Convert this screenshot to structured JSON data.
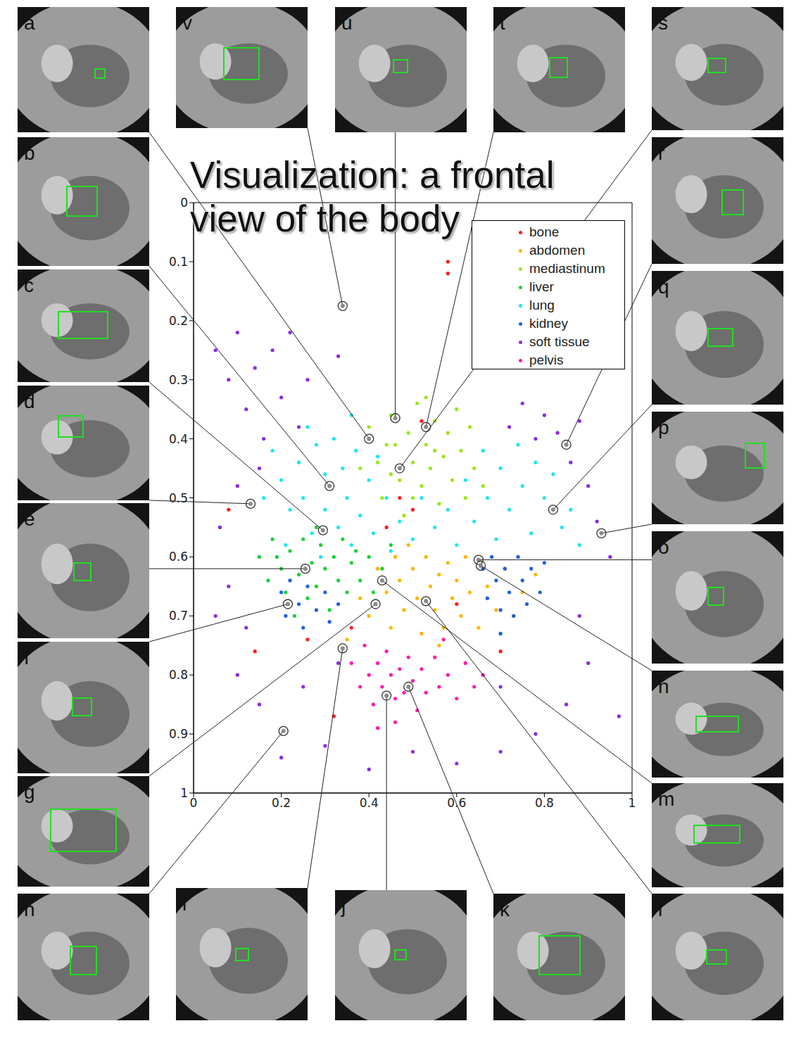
{
  "chart_data": {
    "type": "scatter",
    "title": "Visualization: a frontal view of the body",
    "xlim": [
      0,
      1
    ],
    "ylim": [
      1,
      0
    ],
    "xticks": [
      0,
      0.2,
      0.4,
      0.6,
      0.8,
      1
    ],
    "yticks": [
      0,
      0.1,
      0.2,
      0.3,
      0.4,
      0.5,
      0.6,
      0.7,
      0.8,
      0.9,
      1
    ],
    "legend": "upper right",
    "marker": "circle",
    "series": [
      {
        "name": "bone",
        "color": "#ff1a1a",
        "values": [
          [
            0.58,
            0.1
          ],
          [
            0.58,
            0.12
          ],
          [
            0.08,
            0.52
          ],
          [
            0.14,
            0.76
          ],
          [
            0.47,
            0.5
          ],
          [
            0.5,
            0.52
          ],
          [
            0.32,
            0.87
          ],
          [
            0.36,
            0.72
          ],
          [
            0.6,
            0.68
          ],
          [
            0.52,
            0.37
          ],
          [
            0.26,
            0.74
          ],
          [
            0.7,
            0.76
          ],
          [
            0.44,
            0.55
          ]
        ]
      },
      {
        "name": "abdomen",
        "color": "#ffb400",
        "values": [
          [
            0.38,
            0.67
          ],
          [
            0.4,
            0.7
          ],
          [
            0.42,
            0.62
          ],
          [
            0.44,
            0.66
          ],
          [
            0.45,
            0.72
          ],
          [
            0.46,
            0.6
          ],
          [
            0.47,
            0.64
          ],
          [
            0.48,
            0.69
          ],
          [
            0.5,
            0.62
          ],
          [
            0.51,
            0.67
          ],
          [
            0.52,
            0.73
          ],
          [
            0.53,
            0.6
          ],
          [
            0.54,
            0.65
          ],
          [
            0.55,
            0.69
          ],
          [
            0.56,
            0.63
          ],
          [
            0.57,
            0.72
          ],
          [
            0.58,
            0.61
          ],
          [
            0.59,
            0.67
          ],
          [
            0.6,
            0.64
          ],
          [
            0.61,
            0.7
          ],
          [
            0.62,
            0.6
          ],
          [
            0.63,
            0.66
          ],
          [
            0.65,
            0.72
          ],
          [
            0.67,
            0.65
          ],
          [
            0.69,
            0.69
          ],
          [
            0.71,
            0.62
          ],
          [
            0.73,
            0.7
          ],
          [
            0.75,
            0.66
          ],
          [
            0.78,
            0.63
          ],
          [
            0.49,
            0.58
          ],
          [
            0.56,
            0.75
          ],
          [
            0.35,
            0.74
          ]
        ]
      },
      {
        "name": "mediastinum",
        "color": "#9be619",
        "values": [
          [
            0.4,
            0.38
          ],
          [
            0.42,
            0.44
          ],
          [
            0.43,
            0.5
          ],
          [
            0.45,
            0.36
          ],
          [
            0.46,
            0.41
          ],
          [
            0.47,
            0.47
          ],
          [
            0.48,
            0.53
          ],
          [
            0.49,
            0.39
          ],
          [
            0.5,
            0.44
          ],
          [
            0.51,
            0.34
          ],
          [
            0.52,
            0.48
          ],
          [
            0.53,
            0.41
          ],
          [
            0.54,
            0.45
          ],
          [
            0.55,
            0.37
          ],
          [
            0.56,
            0.51
          ],
          [
            0.57,
            0.43
          ],
          [
            0.58,
            0.39
          ],
          [
            0.59,
            0.47
          ],
          [
            0.6,
            0.35
          ],
          [
            0.61,
            0.42
          ],
          [
            0.62,
            0.5
          ],
          [
            0.63,
            0.38
          ],
          [
            0.64,
            0.45
          ],
          [
            0.45,
            0.46
          ],
          [
            0.5,
            0.5
          ],
          [
            0.55,
            0.42
          ],
          [
            0.38,
            0.45
          ],
          [
            0.66,
            0.48
          ],
          [
            0.53,
            0.33
          ],
          [
            0.44,
            0.41
          ]
        ]
      },
      {
        "name": "liver",
        "color": "#1ad133",
        "values": [
          [
            0.15,
            0.6
          ],
          [
            0.17,
            0.64
          ],
          [
            0.18,
            0.57
          ],
          [
            0.2,
            0.62
          ],
          [
            0.21,
            0.66
          ],
          [
            0.22,
            0.59
          ],
          [
            0.24,
            0.63
          ],
          [
            0.25,
            0.57
          ],
          [
            0.26,
            0.67
          ],
          [
            0.27,
            0.61
          ],
          [
            0.28,
            0.65
          ],
          [
            0.29,
            0.58
          ],
          [
            0.3,
            0.62
          ],
          [
            0.31,
            0.69
          ],
          [
            0.32,
            0.6
          ],
          [
            0.33,
            0.64
          ],
          [
            0.34,
            0.57
          ],
          [
            0.35,
            0.66
          ],
          [
            0.36,
            0.61
          ],
          [
            0.37,
            0.59
          ],
          [
            0.38,
            0.64
          ],
          [
            0.4,
            0.6
          ],
          [
            0.41,
            0.66
          ],
          [
            0.43,
            0.62
          ],
          [
            0.23,
            0.7
          ],
          [
            0.19,
            0.6
          ],
          [
            0.45,
            0.58
          ],
          [
            0.28,
            0.55
          ]
        ]
      },
      {
        "name": "lung",
        "color": "#1ee6f0",
        "values": [
          [
            0.18,
            0.42
          ],
          [
            0.2,
            0.47
          ],
          [
            0.22,
            0.52
          ],
          [
            0.24,
            0.44
          ],
          [
            0.25,
            0.5
          ],
          [
            0.27,
            0.56
          ],
          [
            0.28,
            0.41
          ],
          [
            0.3,
            0.46
          ],
          [
            0.3,
            0.52
          ],
          [
            0.32,
            0.4
          ],
          [
            0.33,
            0.55
          ],
          [
            0.34,
            0.45
          ],
          [
            0.35,
            0.5
          ],
          [
            0.36,
            0.58
          ],
          [
            0.37,
            0.42
          ],
          [
            0.38,
            0.53
          ],
          [
            0.4,
            0.47
          ],
          [
            0.41,
            0.56
          ],
          [
            0.42,
            0.43
          ],
          [
            0.44,
            0.5
          ],
          [
            0.45,
            0.59
          ],
          [
            0.47,
            0.54
          ],
          [
            0.5,
            0.57
          ],
          [
            0.52,
            0.5
          ],
          [
            0.55,
            0.55
          ],
          [
            0.58,
            0.52
          ],
          [
            0.6,
            0.58
          ],
          [
            0.62,
            0.47
          ],
          [
            0.64,
            0.54
          ],
          [
            0.66,
            0.42
          ],
          [
            0.67,
            0.5
          ],
          [
            0.69,
            0.57
          ],
          [
            0.7,
            0.45
          ],
          [
            0.72,
            0.52
          ],
          [
            0.74,
            0.41
          ],
          [
            0.75,
            0.48
          ],
          [
            0.77,
            0.56
          ],
          [
            0.78,
            0.44
          ],
          [
            0.8,
            0.5
          ],
          [
            0.82,
            0.46
          ],
          [
            0.84,
            0.55
          ],
          [
            0.86,
            0.52
          ],
          [
            0.88,
            0.58
          ],
          [
            0.16,
            0.5
          ],
          [
            0.21,
            0.58
          ],
          [
            0.26,
            0.38
          ],
          [
            0.36,
            0.36
          ],
          [
            0.29,
            0.6
          ]
        ]
      },
      {
        "name": "kidney",
        "color": "#1f5fe6",
        "values": [
          [
            0.2,
            0.66
          ],
          [
            0.21,
            0.7
          ],
          [
            0.22,
            0.64
          ],
          [
            0.24,
            0.68
          ],
          [
            0.25,
            0.72
          ],
          [
            0.26,
            0.65
          ],
          [
            0.28,
            0.69
          ],
          [
            0.3,
            0.66
          ],
          [
            0.31,
            0.71
          ],
          [
            0.33,
            0.68
          ],
          [
            0.66,
            0.62
          ],
          [
            0.67,
            0.67
          ],
          [
            0.68,
            0.6
          ],
          [
            0.69,
            0.64
          ],
          [
            0.7,
            0.69
          ],
          [
            0.71,
            0.62
          ],
          [
            0.72,
            0.66
          ],
          [
            0.73,
            0.7
          ],
          [
            0.74,
            0.6
          ],
          [
            0.75,
            0.64
          ],
          [
            0.76,
            0.68
          ],
          [
            0.77,
            0.62
          ],
          [
            0.79,
            0.66
          ],
          [
            0.8,
            0.61
          ],
          [
            0.7,
            0.73
          ]
        ]
      },
      {
        "name": "soft tissue",
        "color": "#8a2be2",
        "values": [
          [
            0.05,
            0.25
          ],
          [
            0.08,
            0.3
          ],
          [
            0.1,
            0.22
          ],
          [
            0.12,
            0.35
          ],
          [
            0.14,
            0.28
          ],
          [
            0.16,
            0.4
          ],
          [
            0.18,
            0.25
          ],
          [
            0.2,
            0.33
          ],
          [
            0.22,
            0.22
          ],
          [
            0.24,
            0.38
          ],
          [
            0.26,
            0.3
          ],
          [
            0.15,
            0.45
          ],
          [
            0.1,
            0.48
          ],
          [
            0.06,
            0.55
          ],
          [
            0.08,
            0.65
          ],
          [
            0.12,
            0.72
          ],
          [
            0.72,
            0.38
          ],
          [
            0.75,
            0.34
          ],
          [
            0.78,
            0.4
          ],
          [
            0.8,
            0.36
          ],
          [
            0.83,
            0.39
          ],
          [
            0.86,
            0.44
          ],
          [
            0.88,
            0.37
          ],
          [
            0.9,
            0.48
          ],
          [
            0.92,
            0.54
          ],
          [
            0.95,
            0.6
          ],
          [
            0.88,
            0.7
          ],
          [
            0.9,
            0.78
          ],
          [
            0.97,
            0.87
          ],
          [
            0.85,
            0.85
          ],
          [
            0.78,
            0.9
          ],
          [
            0.7,
            0.93
          ],
          [
            0.6,
            0.95
          ],
          [
            0.5,
            0.93
          ],
          [
            0.4,
            0.96
          ],
          [
            0.3,
            0.92
          ],
          [
            0.2,
            0.94
          ],
          [
            0.15,
            0.85
          ],
          [
            0.1,
            0.8
          ],
          [
            0.25,
            0.82
          ],
          [
            0.33,
            0.78
          ],
          [
            0.7,
            0.82
          ],
          [
            0.05,
            0.7
          ],
          [
            0.33,
            0.26
          ]
        ]
      },
      {
        "name": "pelvis",
        "color": "#ff1aae",
        "values": [
          [
            0.36,
            0.78
          ],
          [
            0.38,
            0.82
          ],
          [
            0.39,
            0.75
          ],
          [
            0.4,
            0.8
          ],
          [
            0.41,
            0.85
          ],
          [
            0.42,
            0.78
          ],
          [
            0.43,
            0.82
          ],
          [
            0.44,
            0.76
          ],
          [
            0.45,
            0.8
          ],
          [
            0.46,
            0.84
          ],
          [
            0.47,
            0.79
          ],
          [
            0.48,
            0.83
          ],
          [
            0.49,
            0.77
          ],
          [
            0.5,
            0.81
          ],
          [
            0.51,
            0.86
          ],
          [
            0.52,
            0.79
          ],
          [
            0.53,
            0.83
          ],
          [
            0.55,
            0.77
          ],
          [
            0.56,
            0.82
          ],
          [
            0.58,
            0.8
          ],
          [
            0.6,
            0.84
          ],
          [
            0.62,
            0.78
          ],
          [
            0.64,
            0.82
          ],
          [
            0.46,
            0.88
          ],
          [
            0.42,
            0.89
          ],
          [
            0.57,
            0.74
          ],
          [
            0.66,
            0.8
          ]
        ]
      }
    ],
    "annotations": [
      {
        "label": "a",
        "x": 0.4,
        "y": 0.4
      },
      {
        "label": "v",
        "x": 0.34,
        "y": 0.175
      },
      {
        "label": "u",
        "x": 0.46,
        "y": 0.365
      },
      {
        "label": "t",
        "x": 0.53,
        "y": 0.38
      },
      {
        "label": "s",
        "x": 0.47,
        "y": 0.45
      },
      {
        "label": "b",
        "x": 0.31,
        "y": 0.48
      },
      {
        "label": "r",
        "x": 0.85,
        "y": 0.41
      },
      {
        "label": "c",
        "x": 0.295,
        "y": 0.555
      },
      {
        "label": "q",
        "x": 0.82,
        "y": 0.52
      },
      {
        "label": "d",
        "x": 0.13,
        "y": 0.51
      },
      {
        "label": "p",
        "x": 0.93,
        "y": 0.56
      },
      {
        "label": "e",
        "x": 0.255,
        "y": 0.62
      },
      {
        "label": "o",
        "x": 0.65,
        "y": 0.605
      },
      {
        "label": "f",
        "x": 0.215,
        "y": 0.68
      },
      {
        "label": "n",
        "x": 0.655,
        "y": 0.615
      },
      {
        "label": "g",
        "x": 0.415,
        "y": 0.68
      },
      {
        "label": "m",
        "x": 0.43,
        "y": 0.64
      },
      {
        "label": "h",
        "x": 0.205,
        "y": 0.895
      },
      {
        "label": "i",
        "x": 0.34,
        "y": 0.755
      },
      {
        "label": "j",
        "x": 0.44,
        "y": 0.835
      },
      {
        "label": "k",
        "x": 0.49,
        "y": 0.82
      },
      {
        "label": "l",
        "x": 0.53,
        "y": 0.675
      }
    ]
  }
}
